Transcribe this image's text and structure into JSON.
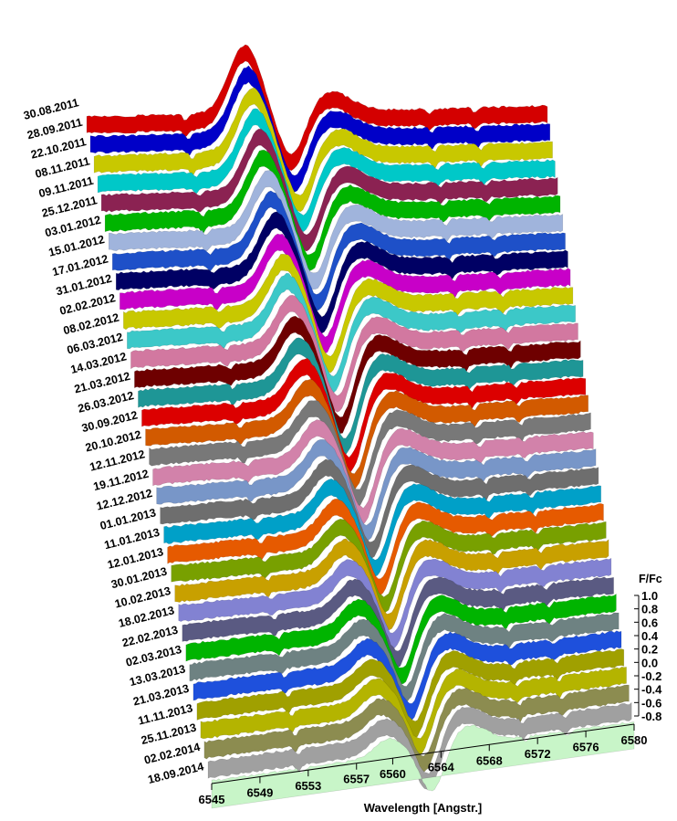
{
  "chart_data": {
    "type": "area",
    "xlabel": "Wavelength [Angstr.]",
    "zlabel": "F/Fc",
    "x_ticks": [
      "6545",
      "6549",
      "6553",
      "6557",
      "6560",
      "6564",
      "6568",
      "6572",
      "6576",
      "6580"
    ],
    "xlim": [
      6545,
      6580
    ],
    "z_ticks": [
      "1.0",
      "0.8",
      "0.6",
      "0.4",
      "0.2",
      "0.0",
      "-0.2",
      "-0.4",
      "-0.6",
      "-0.8"
    ],
    "zlim": [
      -0.8,
      1.0
    ],
    "grid": false,
    "series": [
      {
        "name": "30.08.2011",
        "color": "#d40000",
        "emission": 0.62,
        "absorption": 0.42,
        "emission_center": 6557.0
      },
      {
        "name": "28.09.2011",
        "color": "#0000c8",
        "emission": 0.6,
        "absorption": 0.44,
        "emission_center": 6557.0
      },
      {
        "name": "22.10.2011",
        "color": "#c8c800",
        "emission": 0.58,
        "absorption": 0.45,
        "emission_center": 6557.1
      },
      {
        "name": "08.11.2011",
        "color": "#00c8c8",
        "emission": 0.56,
        "absorption": 0.46,
        "emission_center": 6557.1
      },
      {
        "name": "09.11.2011",
        "color": "#8b2252",
        "emission": 0.55,
        "absorption": 0.47,
        "emission_center": 6557.2
      },
      {
        "name": "25.12.2011",
        "color": "#00b400",
        "emission": 0.54,
        "absorption": 0.48,
        "emission_center": 6557.2
      },
      {
        "name": "03.01.2012",
        "color": "#a0b4dc",
        "emission": 0.52,
        "absorption": 0.48,
        "emission_center": 6557.3
      },
      {
        "name": "15.01.2012",
        "color": "#1e50c8",
        "emission": 0.5,
        "absorption": 0.5,
        "emission_center": 6557.3
      },
      {
        "name": "17.01.2012",
        "color": "#000064",
        "emission": 0.48,
        "absorption": 0.52,
        "emission_center": 6557.4
      },
      {
        "name": "31.01.2012",
        "color": "#c800c8",
        "emission": 0.46,
        "absorption": 0.53,
        "emission_center": 6557.4
      },
      {
        "name": "02.02.2012",
        "color": "#c8c800",
        "emission": 0.45,
        "absorption": 0.54,
        "emission_center": 6557.5
      },
      {
        "name": "08.02.2012",
        "color": "#3cc8c8",
        "emission": 0.44,
        "absorption": 0.55,
        "emission_center": 6557.5
      },
      {
        "name": "06.03.2012",
        "color": "#d278a0",
        "emission": 0.42,
        "absorption": 0.56,
        "emission_center": 6557.6
      },
      {
        "name": "14.03.2012",
        "color": "#6e0000",
        "emission": 0.4,
        "absorption": 0.58,
        "emission_center": 6557.6
      },
      {
        "name": "21.03.2012",
        "color": "#1e9696",
        "emission": 0.38,
        "absorption": 0.6,
        "emission_center": 6557.7
      },
      {
        "name": "26.03.2012",
        "color": "#dc0000",
        "emission": 0.36,
        "absorption": 0.6,
        "emission_center": 6557.8
      },
      {
        "name": "30.09.2012",
        "color": "#d25a00",
        "emission": 0.34,
        "absorption": 0.58,
        "emission_center": 6557.9
      },
      {
        "name": "20.10.2012",
        "color": "#787878",
        "emission": 0.33,
        "absorption": 0.56,
        "emission_center": 6558.0
      },
      {
        "name": "12.11.2012",
        "color": "#d282aa",
        "emission": 0.32,
        "absorption": 0.55,
        "emission_center": 6558.1
      },
      {
        "name": "19.11.2012",
        "color": "#7896c8",
        "emission": 0.31,
        "absorption": 0.54,
        "emission_center": 6558.2
      },
      {
        "name": "12.12.2012",
        "color": "#6e6e6e",
        "emission": 0.3,
        "absorption": 0.53,
        "emission_center": 6558.3
      },
      {
        "name": "01.01.2013",
        "color": "#00a0c8",
        "emission": 0.29,
        "absorption": 0.52,
        "emission_center": 6558.4
      },
      {
        "name": "11.01.2013",
        "color": "#e65a00",
        "emission": 0.28,
        "absorption": 0.52,
        "emission_center": 6558.5
      },
      {
        "name": "12.01.2013",
        "color": "#78a000",
        "emission": 0.27,
        "absorption": 0.51,
        "emission_center": 6558.6
      },
      {
        "name": "30.01.2013",
        "color": "#c8a000",
        "emission": 0.26,
        "absorption": 0.5,
        "emission_center": 6558.7
      },
      {
        "name": "10.02.2013",
        "color": "#8282d2",
        "emission": 0.25,
        "absorption": 0.5,
        "emission_center": 6558.8
      },
      {
        "name": "18.02.2013",
        "color": "#5a5a82",
        "emission": 0.24,
        "absorption": 0.49,
        "emission_center": 6558.9
      },
      {
        "name": "22.02.2013",
        "color": "#00b400",
        "emission": 0.23,
        "absorption": 0.48,
        "emission_center": 6559.0
      },
      {
        "name": "02.03.2013",
        "color": "#6e8282",
        "emission": 0.22,
        "absorption": 0.47,
        "emission_center": 6559.1
      },
      {
        "name": "13.03.2013",
        "color": "#1e50dc",
        "emission": 0.21,
        "absorption": 0.46,
        "emission_center": 6559.2
      },
      {
        "name": "21.03.2013",
        "color": "#a0a000",
        "emission": 0.2,
        "absorption": 0.45,
        "emission_center": 6559.3
      },
      {
        "name": "11.11.2013",
        "color": "#b4b400",
        "emission": 0.19,
        "absorption": 0.44,
        "emission_center": 6559.4
      },
      {
        "name": "25.11.2013",
        "color": "#8c8c50",
        "emission": 0.18,
        "absorption": 0.43,
        "emission_center": 6559.5
      },
      {
        "name": "02.02.2014",
        "color": "#a0a0a0",
        "emission": 0.17,
        "absorption": 0.42,
        "emission_center": 6559.6
      },
      {
        "name": "18.09.2014",
        "color": "#c8f5c8",
        "emission": 0.16,
        "absorption": 0.41,
        "emission_center": 6559.7
      }
    ]
  }
}
